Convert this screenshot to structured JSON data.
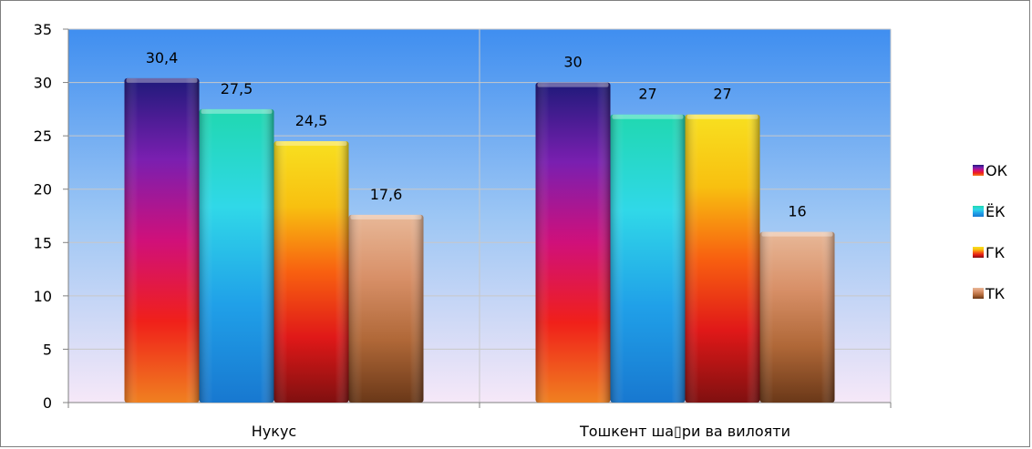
{
  "chart_data": {
    "type": "bar",
    "categories": [
      "Нукус",
      "Тошкент ша▯ри ва вилояти"
    ],
    "series": [
      {
        "name": "ОК",
        "values": [
          30.4,
          30
        ],
        "labels": [
          "30,4",
          "30"
        ],
        "gradient": [
          "#1f1a7a",
          "#7a1fb0",
          "#d0107a",
          "#f0201a",
          "#f08020"
        ]
      },
      {
        "name": "ЁК",
        "values": [
          27.5,
          27
        ],
        "labels": [
          "27,5",
          "27"
        ],
        "gradient": [
          "#20d8b0",
          "#30d8e8",
          "#20a0e8",
          "#1878d0"
        ]
      },
      {
        "name": "ГК",
        "values": [
          24.5,
          27
        ],
        "labels": [
          "24,5",
          "27"
        ],
        "gradient": [
          "#f8e020",
          "#f8c010",
          "#f86010",
          "#e01818",
          "#801010"
        ]
      },
      {
        "name": "ТК",
        "values": [
          17.6,
          16
        ],
        "labels": [
          "17,6",
          "16"
        ],
        "gradient": [
          "#e8b898",
          "#d89068",
          "#b06838",
          "#6a3818"
        ]
      }
    ],
    "ylim": [
      0,
      35
    ],
    "yticks": [
      "0",
      "5",
      "10",
      "15",
      "20",
      "25",
      "30",
      "35"
    ],
    "grid": true,
    "legend_position": "right",
    "plot_background": [
      "#3f8ef0",
      "#9cc6f4",
      "#f6e8f8"
    ]
  }
}
